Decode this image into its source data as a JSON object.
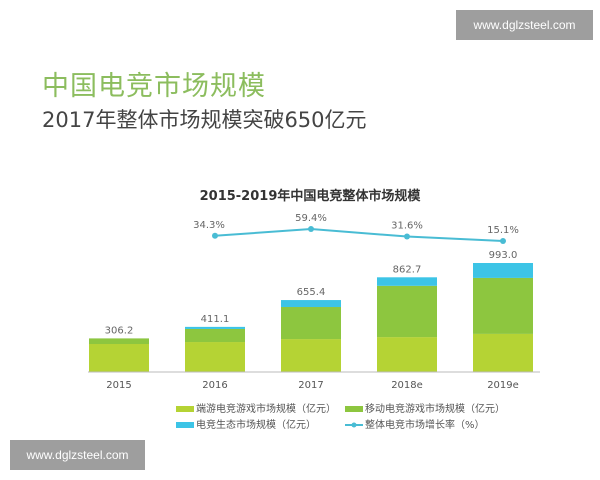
{
  "watermark": "www.dglzsteel.com",
  "header": {
    "title": "中国电竞市场规模",
    "subtitle": "2017年整体市场规模突破650亿元"
  },
  "colors": {
    "client": "#b5d334",
    "mobile": "#8dc63f",
    "eco": "#3cc4e6",
    "line": "#49bcd4"
  },
  "chart_data": {
    "type": "bar",
    "stacked": true,
    "title": "2015-2019年中国电竞整体市场规模",
    "categories": [
      "2015",
      "2016",
      "2017",
      "2018e",
      "2019e"
    ],
    "series": [
      {
        "name": "端游电竞游戏市场规模（亿元）",
        "values": [
          255,
          273,
          300,
          318,
          347
        ]
      },
      {
        "name": "移动电竞游戏市场规模（亿元）",
        "values": [
          51,
          119,
          292,
          467,
          510
        ]
      },
      {
        "name": "电竞生态市场规模（亿元）",
        "values": [
          0.2,
          19.1,
          63.4,
          77.7,
          136
        ]
      }
    ],
    "totals": [
      "306.2",
      "411.1",
      "655.4",
      "862.7",
      "993.0"
    ],
    "line": {
      "name": "整体电竞市场增长率（%）",
      "values": [
        null,
        34.3,
        59.4,
        31.6,
        15.1
      ],
      "labels": [
        "",
        "34.3%",
        "59.4%",
        "31.6%",
        "15.1%"
      ]
    },
    "legend": "bottom"
  }
}
